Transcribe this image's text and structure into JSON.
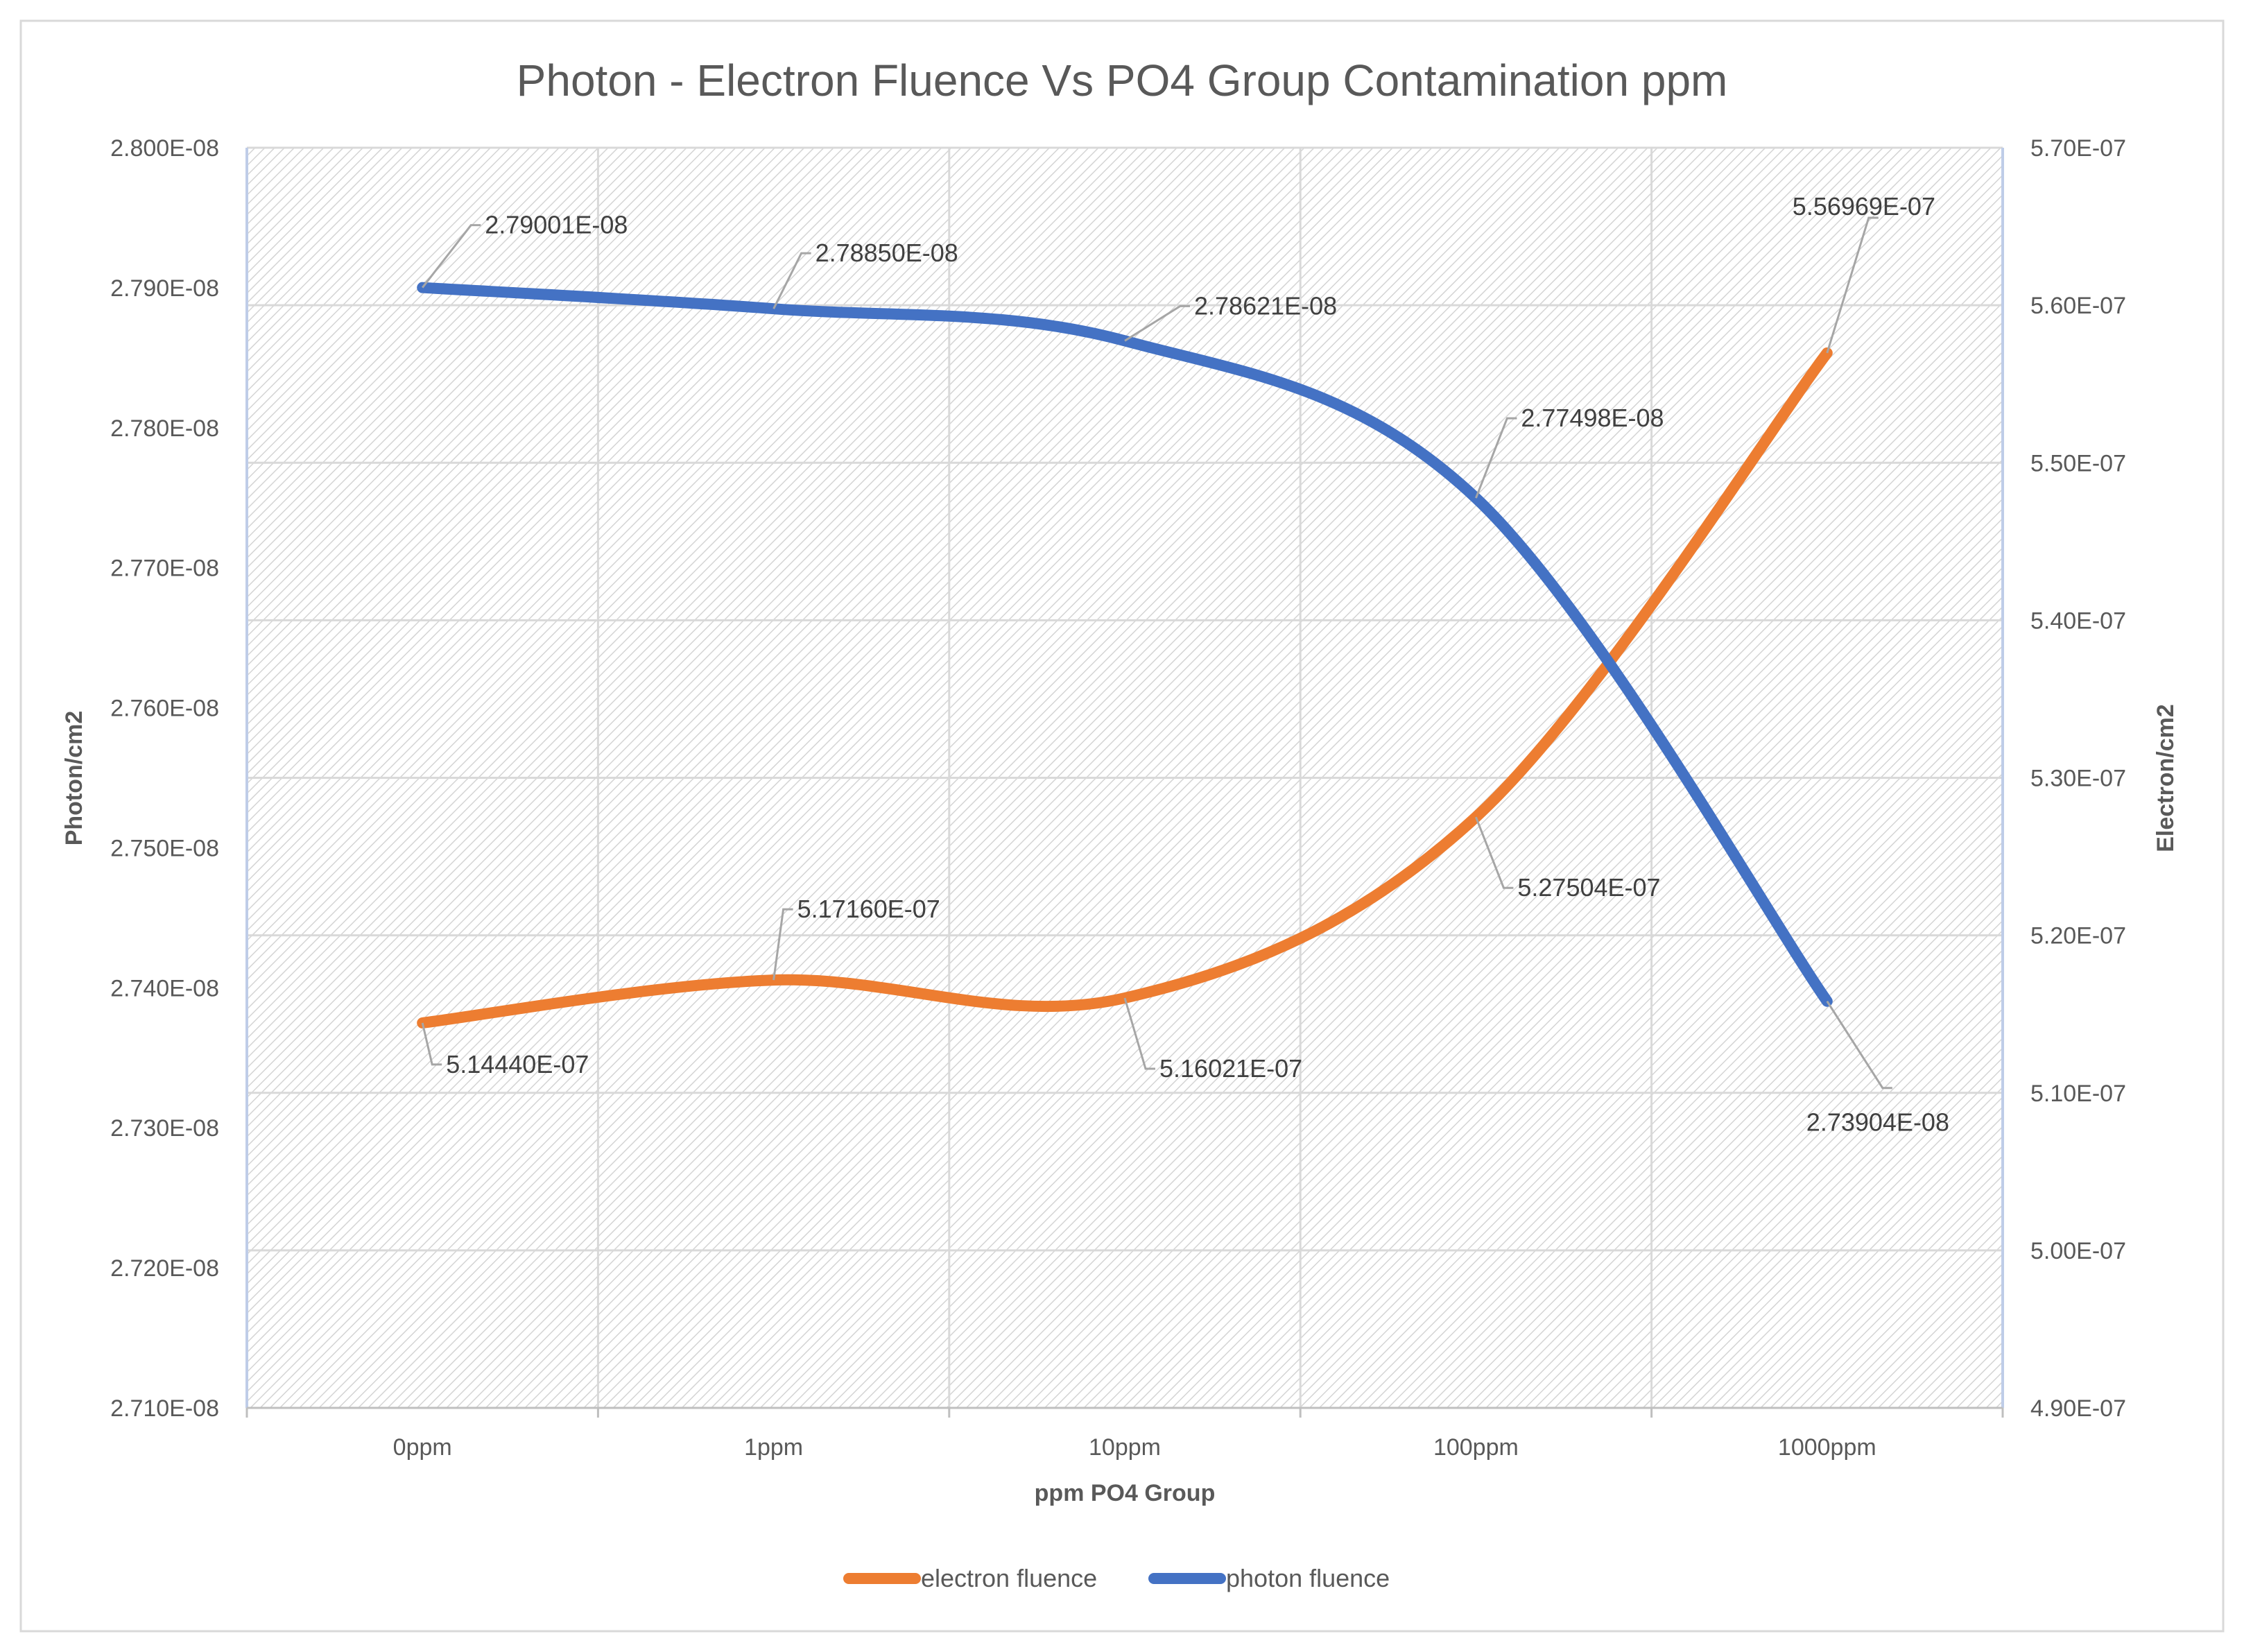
{
  "chart_data": {
    "type": "line",
    "title": "Photon - Electron Fluence Vs PO4 Group Contamination ppm",
    "xlabel": "ppm PO4 Group",
    "ylabel_left": "Photon/cm2",
    "ylabel_right": "Electron/cm2",
    "categories": [
      "0ppm",
      "1ppm",
      "10ppm",
      "100ppm",
      "1000ppm"
    ],
    "ylim_left": [
      2.71e-08,
      2.8e-08
    ],
    "ylim_right": [
      4.9e-07,
      5.7e-07
    ],
    "yticks_left": [
      "2.710E-08",
      "2.720E-08",
      "2.730E-08",
      "2.740E-08",
      "2.750E-08",
      "2.760E-08",
      "2.770E-08",
      "2.780E-08",
      "2.790E-08",
      "2.800E-08"
    ],
    "yticks_right": [
      "4.90E-07",
      "5.00E-07",
      "5.10E-07",
      "5.20E-07",
      "5.30E-07",
      "5.40E-07",
      "5.50E-07",
      "5.60E-07",
      "5.70E-07"
    ],
    "grid": true,
    "legend_position": "bottom",
    "series": [
      {
        "name": "electron fluence",
        "axis": "right",
        "color": "#ed7d31",
        "values": [
          5.1444e-07,
          5.1716e-07,
          5.16021e-07,
          5.27504e-07,
          5.56969e-07
        ],
        "labels": [
          "5.14440E-07",
          "5.17160E-07",
          "5.16021E-07",
          "5.27504E-07",
          "5.56969E-07"
        ]
      },
      {
        "name": "photon fluence",
        "axis": "left",
        "color": "#4472c4",
        "values": [
          2.79001e-08,
          2.7885e-08,
          2.78621e-08,
          2.77498e-08,
          2.73904e-08
        ],
        "labels": [
          "2.79001E-08",
          "2.78850E-08",
          "2.78621E-08",
          "2.77498E-08",
          "2.73904E-08"
        ]
      }
    ]
  }
}
